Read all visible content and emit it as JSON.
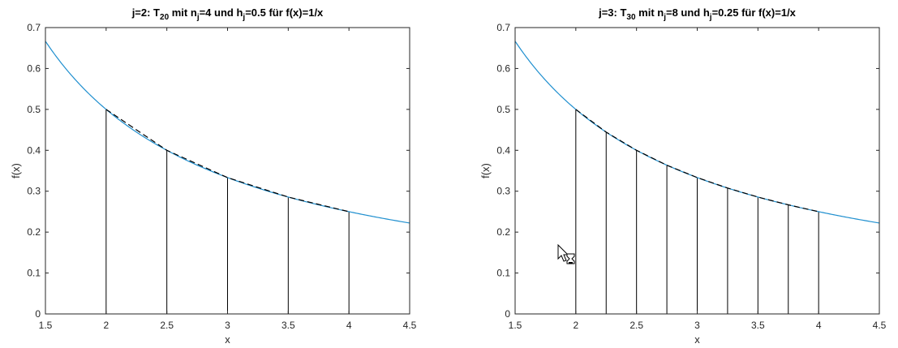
{
  "chart_data": [
    {
      "type": "line",
      "title": {
        "parts": [
          {
            "text": "j=2: T",
            "sub": false
          },
          {
            "text": "20",
            "sub": true
          },
          {
            "text": " mit n",
            "sub": false
          },
          {
            "text": "j",
            "sub": true
          },
          {
            "text": "=4 und h",
            "sub": false
          },
          {
            "text": "j",
            "sub": true
          },
          {
            "text": "=0.5 für f(x)=1/x",
            "sub": false
          }
        ]
      },
      "xlabel": "x",
      "ylabel": "f(x)",
      "xlim": [
        1.5,
        4.5
      ],
      "ylim": [
        0,
        0.7
      ],
      "xticks": [
        1.5,
        2,
        2.5,
        3,
        3.5,
        4,
        4.5
      ],
      "xtick_labels": [
        "1.5",
        "2",
        "2.5",
        "3",
        "3.5",
        "4",
        "4.5"
      ],
      "yticks": [
        0,
        0.1,
        0.2,
        0.3,
        0.4,
        0.5,
        0.6,
        0.7
      ],
      "ytick_labels": [
        "0",
        "0.1",
        "0.2",
        "0.3",
        "0.4",
        "0.5",
        "0.6",
        "0.7"
      ],
      "curve": {
        "function": "1/x",
        "x_range": [
          1.5,
          4.5
        ],
        "color": "#1f8fcf"
      },
      "nodes": {
        "x": [
          2,
          2.5,
          3,
          3.5,
          4
        ],
        "y": [
          0.5,
          0.4,
          0.3333,
          0.2857,
          0.25
        ]
      },
      "grid": false,
      "box": true
    },
    {
      "type": "line",
      "title": {
        "parts": [
          {
            "text": "j=3: T",
            "sub": false
          },
          {
            "text": "30",
            "sub": true
          },
          {
            "text": " mit n",
            "sub": false
          },
          {
            "text": "j",
            "sub": true
          },
          {
            "text": "=8 und h",
            "sub": false
          },
          {
            "text": "j",
            "sub": true
          },
          {
            "text": "=0.25 für f(x)=1/x",
            "sub": false
          }
        ]
      },
      "xlabel": "x",
      "ylabel": "f(x)",
      "xlim": [
        1.5,
        4.5
      ],
      "ylim": [
        0,
        0.7
      ],
      "xticks": [
        1.5,
        2,
        2.5,
        3,
        3.5,
        4,
        4.5
      ],
      "xtick_labels": [
        "1.5",
        "2",
        "2.5",
        "3",
        "3.5",
        "4",
        "4.5"
      ],
      "yticks": [
        0,
        0.1,
        0.2,
        0.3,
        0.4,
        0.5,
        0.6,
        0.7
      ],
      "ytick_labels": [
        "0",
        "0.1",
        "0.2",
        "0.3",
        "0.4",
        "0.5",
        "0.6",
        "0.7"
      ],
      "curve": {
        "function": "1/x",
        "x_range": [
          1.5,
          4.5
        ],
        "color": "#1f8fcf"
      },
      "nodes": {
        "x": [
          2,
          2.25,
          2.5,
          2.75,
          3,
          3.25,
          3.5,
          3.75,
          4
        ],
        "y": [
          0.5,
          0.4444,
          0.4,
          0.3636,
          0.3333,
          0.3077,
          0.2857,
          0.2667,
          0.25
        ]
      },
      "grid": false,
      "box": true
    }
  ],
  "cursor": {
    "icon": "busy-cursor-icon"
  }
}
